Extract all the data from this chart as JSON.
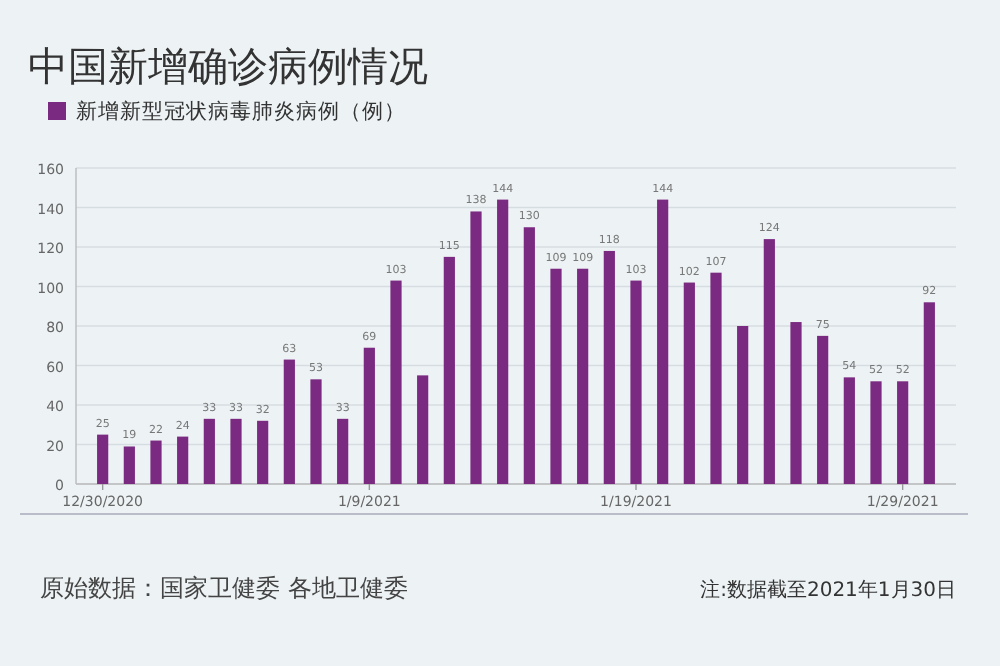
{
  "chart_data": {
    "type": "bar",
    "title": "中国新增确诊病例情况",
    "x": [
      "2020-12-30",
      "2020-12-31",
      "2021-01-01",
      "2021-01-02",
      "2021-01-03",
      "2021-01-04",
      "2021-01-05",
      "2021-01-06",
      "2021-01-07",
      "2021-01-08",
      "2021-01-09",
      "2021-01-10",
      "2021-01-11",
      "2021-01-12",
      "2021-01-13",
      "2021-01-14",
      "2021-01-15",
      "2021-01-16",
      "2021-01-17",
      "2021-01-18",
      "2021-01-19",
      "2021-01-20",
      "2021-01-21",
      "2021-01-22",
      "2021-01-23",
      "2021-01-24",
      "2021-01-25",
      "2021-01-26",
      "2021-01-27",
      "2021-01-28",
      "2021-01-29",
      "2021-01-30"
    ],
    "series": [
      {
        "name": "新增新型冠状病毒肺炎病例（例）",
        "color": "#7b2a82",
        "values": [
          25,
          19,
          22,
          24,
          33,
          33,
          32,
          63,
          53,
          33,
          69,
          103,
          55,
          115,
          138,
          144,
          130,
          109,
          109,
          118,
          103,
          144,
          102,
          107,
          80,
          124,
          82,
          75,
          54,
          52,
          52,
          92
        ],
        "value_labels": [
          "25",
          "19",
          "22",
          "24",
          "33",
          "33",
          "32",
          "63",
          "53",
          "33",
          "69",
          "103",
          null,
          "115",
          "138",
          "144",
          "130",
          "109",
          "109",
          "118",
          "103",
          "144",
          "102",
          "107",
          null,
          "124",
          null,
          "75",
          "54",
          "52",
          "52",
          "92"
        ]
      }
    ],
    "xlim": [
      "2020-12-29",
      "2021-01-31"
    ],
    "xticks": [
      {
        "value": "2020-12-30",
        "label": "12/30/2020"
      },
      {
        "value": "2021-01-09",
        "label": "1/9/2021"
      },
      {
        "value": "2021-01-19",
        "label": "1/19/2021"
      },
      {
        "value": "2021-01-29",
        "label": "1/29/2021"
      }
    ],
    "ylim": [
      0,
      160
    ],
    "yticks": [
      0,
      20,
      40,
      60,
      80,
      100,
      120,
      140,
      160
    ],
    "grid": "y",
    "legend": "top left",
    "annotations": [
      "原始数据：国家卫健委 各地卫健委",
      "注:数据截至2021年1月30日"
    ]
  }
}
